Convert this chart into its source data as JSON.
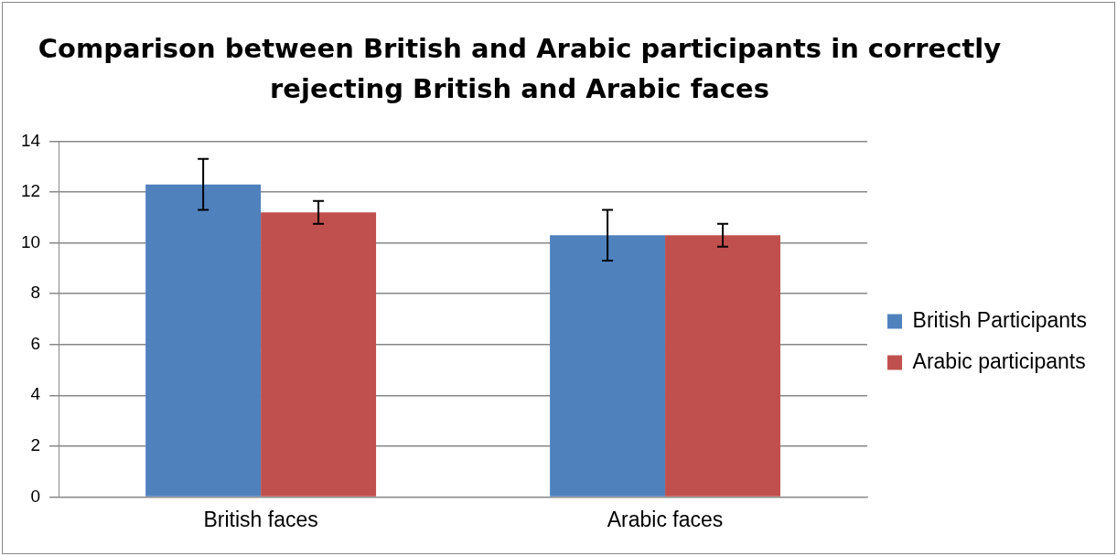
{
  "chart_data": {
    "type": "bar",
    "title": "Comparison between British and Arabic participants in correctly rejecting British and Arabic faces",
    "categories": [
      "British faces",
      "Arabic faces"
    ],
    "series": [
      {
        "name": "British Participants",
        "color": "#4f81bd",
        "values": [
          12.3,
          10.3
        ],
        "errors": [
          1.0,
          1.0
        ]
      },
      {
        "name": "Arabic participants",
        "color": "#c0504d",
        "values": [
          11.2,
          10.3
        ],
        "errors": [
          0.45,
          0.45
        ]
      }
    ],
    "ylim": [
      0,
      14
    ],
    "yticks": [
      0,
      2,
      4,
      6,
      8,
      10,
      12,
      14
    ],
    "grid": "y",
    "legend": "right"
  }
}
